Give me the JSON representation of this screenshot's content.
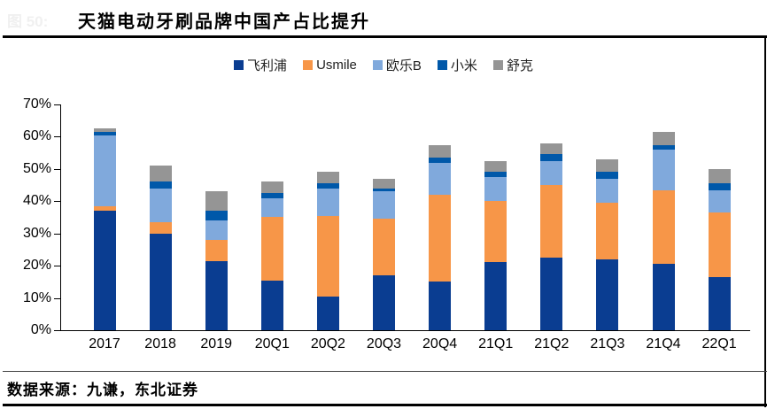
{
  "header": {
    "figure_label": "图 50:",
    "title": "天猫电动牙刷品牌中国产占比提升"
  },
  "chart_data": {
    "type": "bar",
    "stacked": true,
    "title": "天猫电动牙刷品牌中国产占比提升",
    "xlabel": "",
    "ylabel": "",
    "ylim": [
      0,
      70
    ],
    "y_ticks": [
      "0%",
      "10%",
      "20%",
      "30%",
      "40%",
      "50%",
      "60%",
      "70%"
    ],
    "grid": false,
    "legend_position": "top",
    "categories": [
      "2017",
      "2018",
      "2019",
      "20Q1",
      "20Q2",
      "20Q3",
      "20Q4",
      "21Q1",
      "21Q2",
      "21Q3",
      "21Q4",
      "22Q1"
    ],
    "series": [
      {
        "name": "飞利浦",
        "color": "#0A3D91",
        "values": [
          37,
          30,
          21.5,
          15.5,
          10.5,
          17,
          15,
          21,
          22.5,
          22,
          20.5,
          16.5
        ]
      },
      {
        "name": "Usmile",
        "color": "#F79648",
        "values": [
          1.5,
          3.5,
          6.5,
          19.5,
          25,
          17.5,
          27,
          19,
          22.5,
          17.5,
          23,
          20
        ]
      },
      {
        "name": "欧乐B",
        "color": "#80A9DC",
        "values": [
          22,
          10.5,
          6,
          6,
          8.5,
          8.5,
          10,
          7.5,
          7.5,
          7.5,
          12.5,
          7
        ]
      },
      {
        "name": "小米",
        "color": "#0058A9",
        "values": [
          1,
          2,
          3,
          1.5,
          1.5,
          1,
          1.5,
          1.5,
          2,
          2,
          1.5,
          2
        ]
      },
      {
        "name": "舒克",
        "color": "#959595",
        "values": [
          1,
          5,
          6,
          3.5,
          3.5,
          3,
          4,
          3.5,
          3.5,
          4,
          4,
          4.5
        ]
      }
    ]
  },
  "footer": {
    "source": "数据来源：九谦，东北证券"
  }
}
